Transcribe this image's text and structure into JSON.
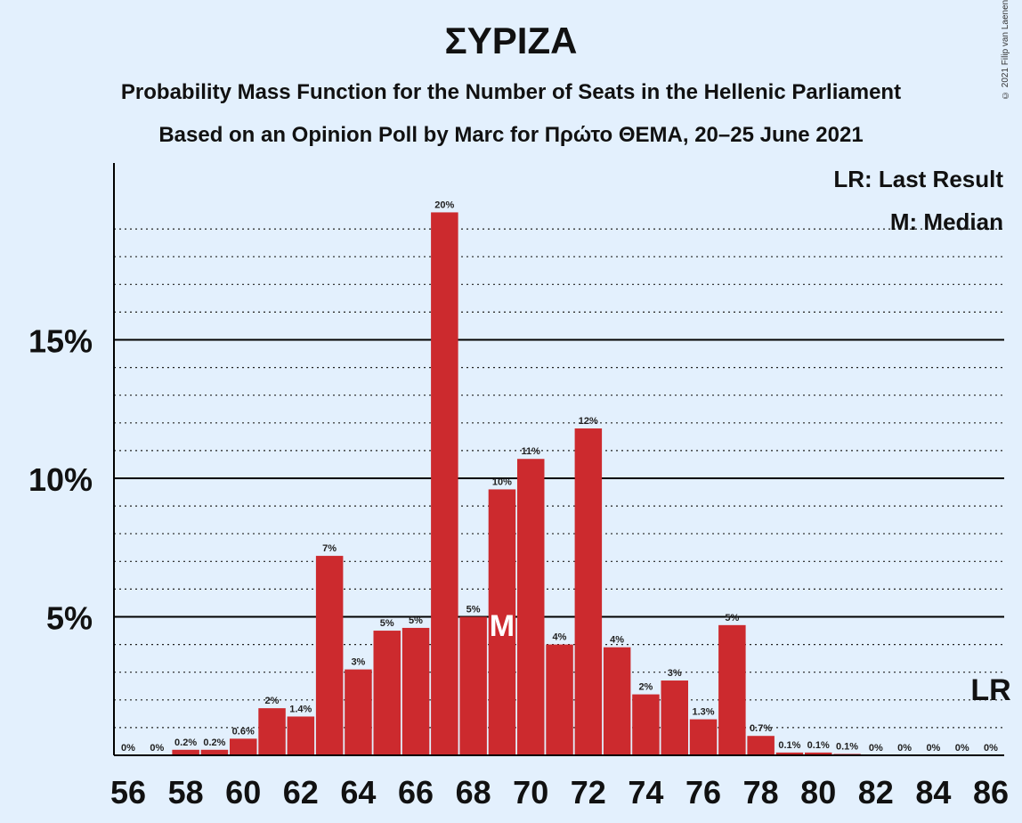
{
  "title": "ΣΥΡΙΖΑ",
  "subtitle": "Probability Mass Function for the Number of Seats in the Hellenic Parliament",
  "subtitle2": "Based on an Opinion Poll by Marc for Πρώτο ΘΕΜΑ, 20–25 June 2021",
  "copyright": "© 2021 Filip van Laenen",
  "legend": {
    "last_result": "LR: Last Result",
    "median": "M: Median"
  },
  "markers": {
    "median_label": "M",
    "median_seat": 69,
    "last_result_label": "LR",
    "last_result_seat": 86
  },
  "colors": {
    "bar": "#cc2a2e",
    "background": "#e3f0fd"
  },
  "chart_data": {
    "type": "bar",
    "x": [
      56,
      57,
      58,
      59,
      60,
      61,
      62,
      63,
      64,
      65,
      66,
      67,
      68,
      69,
      70,
      71,
      72,
      73,
      74,
      75,
      76,
      77,
      78,
      79,
      80,
      81,
      82,
      83,
      84,
      85,
      86
    ],
    "values": [
      0,
      0,
      0.2,
      0.2,
      0.6,
      1.7,
      1.4,
      7.2,
      3.1,
      4.5,
      4.6,
      19.6,
      5.0,
      9.6,
      10.7,
      4.0,
      11.8,
      3.9,
      2.2,
      2.7,
      1.3,
      4.7,
      0.7,
      0.1,
      0.1,
      0.05,
      0,
      0,
      0,
      0,
      0
    ],
    "labels": [
      "0%",
      "0%",
      "0.2%",
      "0.2%",
      "0.6%",
      "2%",
      "1.4%",
      "7%",
      "3%",
      "5%",
      "5%",
      "20%",
      "5%",
      "10%",
      "11%",
      "4%",
      "12%",
      "4%",
      "2%",
      "3%",
      "1.3%",
      "5%",
      "0.7%",
      "0.1%",
      "0.1%",
      "0.1%",
      "0%",
      "0%",
      "0%",
      "0%",
      "0%"
    ],
    "x_ticks": [
      56,
      58,
      60,
      62,
      64,
      66,
      68,
      70,
      72,
      74,
      76,
      78,
      80,
      82,
      84,
      86
    ],
    "x_tick_labels": [
      "56",
      "58",
      "60",
      "62",
      "64",
      "66",
      "68",
      "70",
      "72",
      "74",
      "76",
      "78",
      "80",
      "82",
      "84",
      "86"
    ],
    "y_ticks": [
      5,
      10,
      15
    ],
    "y_tick_labels": [
      "5%",
      "10%",
      "15%"
    ],
    "ylim": [
      0,
      21.5
    ],
    "y_unit": "%",
    "minor_gridlines": true
  }
}
